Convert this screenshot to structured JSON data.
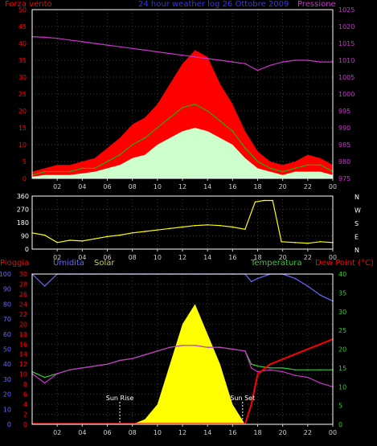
{
  "chart_data": [
    {
      "type": "line",
      "title": "24 hour weather log 26 Ottobre 2009",
      "ylabel_left": "Forza vento",
      "ylabel_right": "Pressione",
      "ylim_left": [
        0,
        50
      ],
      "ylim_right": [
        975,
        1025
      ],
      "yticks_left": [
        0,
        5,
        10,
        15,
        20,
        25,
        30,
        35,
        40,
        45,
        50
      ],
      "yticks_right": [
        975,
        980,
        985,
        990,
        995,
        1000,
        1005,
        1010,
        1015,
        1020,
        1025
      ],
      "xticks": [
        "02",
        "04",
        "06",
        "08",
        "10",
        "12",
        "14",
        "16",
        "18",
        "20",
        "22",
        "00"
      ],
      "x_hours": [
        0,
        1,
        2,
        3,
        4,
        5,
        6,
        7,
        8,
        9,
        10,
        11,
        12,
        13,
        14,
        15,
        16,
        17,
        18,
        19,
        20,
        21,
        22,
        23,
        24
      ],
      "series": [
        {
          "name": "Forza vento",
          "color": "#ff0000",
          "values": [
            2,
            3,
            4,
            4,
            5,
            6,
            9,
            12,
            16,
            18,
            22,
            28,
            34,
            38,
            36,
            28,
            22,
            14,
            8,
            5,
            4,
            5,
            7,
            6,
            4
          ]
        },
        {
          "color": "#00cc00",
          "values": [
            1,
            2,
            2,
            2,
            3,
            3,
            5,
            7,
            10,
            12,
            15,
            18,
            21,
            22,
            20,
            17,
            14,
            9,
            5,
            3,
            2,
            3,
            4,
            4,
            2
          ]
        },
        {
          "color": "#ccffcc",
          "values": [
            0.5,
            1,
            1,
            1,
            1.5,
            2,
            3,
            4,
            6,
            7,
            10,
            12,
            14,
            15,
            14,
            12,
            10,
            6,
            3,
            2,
            1,
            2,
            2,
            2,
            1
          ]
        },
        {
          "name": "Pressione",
          "color": "#cc33cc",
          "values": [
            1017,
            1016.8,
            1016.5,
            1016,
            1015.5,
            1015,
            1014.5,
            1014,
            1013.5,
            1013,
            1012.5,
            1012,
            1011.5,
            1011,
            1010.5,
            1010,
            1009.5,
            1009,
            1007,
            1008.5,
            1009.5,
            1010,
            1010,
            1009.5,
            1009.5
          ]
        }
      ]
    },
    {
      "type": "line",
      "ylim": [
        0,
        360
      ],
      "yticks": [
        0,
        90,
        180,
        270,
        360
      ],
      "right_labels": [
        "N",
        "W",
        "S",
        "E",
        "N"
      ],
      "xticks": [
        "02",
        "04",
        "06",
        "08",
        "10",
        "12",
        "14",
        "16",
        "18",
        "20",
        "22",
        "00"
      ],
      "x_hours": [
        0,
        1,
        2,
        3,
        4,
        5,
        6,
        7,
        8,
        9,
        10,
        11,
        12,
        13,
        14,
        15,
        16,
        17,
        17.8,
        18.5,
        19.2,
        19.9,
        21,
        22,
        23,
        24
      ],
      "series": [
        {
          "color": "#ffff00",
          "values": [
            110,
            95,
            45,
            60,
            55,
            70,
            85,
            95,
            110,
            120,
            130,
            140,
            150,
            160,
            165,
            160,
            150,
            135,
            320,
            330,
            330,
            50,
            45,
            40,
            50,
            45
          ]
        }
      ]
    },
    {
      "type": "line",
      "legend": [
        "Pioggia",
        "Umidita",
        "Solar",
        "Temperatura",
        "Dew Point (°C)"
      ],
      "ylim_humidity": [
        0,
        100
      ],
      "ylim_rain": [
        0,
        30
      ],
      "ylim_temp": [
        0,
        40
      ],
      "yticks_humidity": [
        0,
        10,
        20,
        30,
        40,
        50,
        60,
        70,
        80,
        90,
        100
      ],
      "yticks_rain": [
        0,
        2,
        4,
        6,
        8,
        10,
        12,
        14,
        16,
        18,
        20,
        22,
        24,
        26,
        28,
        30
      ],
      "yticks_temp": [
        0,
        5,
        10,
        15,
        20,
        25,
        30,
        35,
        40
      ],
      "xticks": [
        "02",
        "04",
        "06",
        "08",
        "10",
        "12",
        "14",
        "16",
        "18",
        "20",
        "22",
        "00"
      ],
      "annotations": [
        "Sun Rise",
        "Sun Set"
      ],
      "x_hours": [
        0,
        1,
        2,
        3,
        4,
        5,
        6,
        7,
        8,
        9,
        10,
        11,
        12,
        13,
        14,
        15,
        16,
        17,
        17.5,
        18,
        19,
        20,
        21,
        22,
        23,
        24
      ],
      "series": [
        {
          "name": "Umidita",
          "color": "#6666ff",
          "values": [
            100,
            92,
            100,
            100,
            100,
            100,
            100,
            100,
            100,
            100,
            100,
            100,
            100,
            100,
            100,
            100,
            100,
            100,
            95,
            97,
            100,
            100,
            97,
            92,
            86,
            82
          ]
        },
        {
          "name": "Temperatura",
          "color": "#33cc33",
          "values": [
            14,
            12.5,
            13.5,
            14.5,
            15,
            15.5,
            16,
            17,
            17.5,
            18.5,
            19.5,
            20.5,
            21,
            21,
            20.5,
            20.5,
            20,
            19.5,
            16,
            15.5,
            15,
            15,
            14.5,
            14.5,
            14.5,
            14.5
          ]
        },
        {
          "name": "Dew Point (°C)",
          "color": "#cc33cc",
          "values": [
            13.5,
            11,
            13.5,
            14.5,
            15,
            15.5,
            16,
            17,
            17.5,
            18.5,
            19.5,
            20.5,
            21,
            21,
            20.5,
            20.5,
            20,
            19.5,
            15,
            14,
            14.5,
            14,
            13,
            12.5,
            11,
            10
          ]
        },
        {
          "name": "Pioggia",
          "color": "#ff0000",
          "values": [
            0.1,
            0.1,
            0.1,
            0.1,
            0.1,
            0.1,
            0.1,
            0.1,
            0.1,
            0.1,
            0.1,
            0.1,
            0.1,
            0.1,
            0.1,
            0.1,
            0.1,
            0.1,
            4,
            10,
            12,
            13,
            14,
            15,
            16,
            17
          ]
        },
        {
          "name": "Solar",
          "color": "#ffff00",
          "values": [
            0,
            0,
            0,
            0,
            0,
            0,
            0,
            0,
            0,
            1,
            4,
            12,
            20,
            24,
            18,
            12,
            4,
            0,
            0,
            0,
            0,
            0,
            0,
            0,
            0,
            0
          ]
        }
      ]
    }
  ]
}
